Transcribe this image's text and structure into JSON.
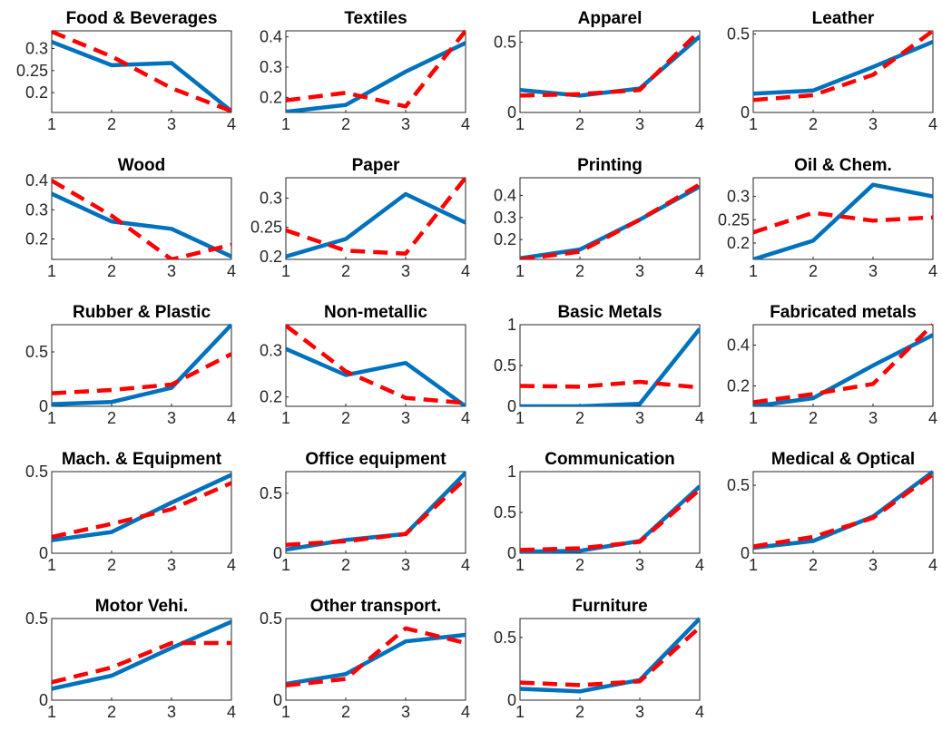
{
  "chart_data": [
    {
      "type": "line",
      "title": "Food & Beverages",
      "x": [
        1,
        2,
        3,
        4
      ],
      "xticks": [
        "1",
        "2",
        "3",
        "4"
      ],
      "ylim": [
        0.155,
        0.34
      ],
      "yticks": [
        0.2,
        0.25,
        0.3
      ],
      "ytick_labels": [
        "0.2",
        "0.25",
        "0.3"
      ],
      "series": [
        {
          "values": [
            0.315,
            0.262,
            0.267,
            0.158
          ],
          "color": "#0072BD",
          "style": "solid"
        },
        {
          "values": [
            0.338,
            0.282,
            0.21,
            0.158
          ],
          "color": "#FF0000",
          "style": "dashed"
        }
      ]
    },
    {
      "type": "line",
      "title": "Textiles",
      "x": [
        1,
        2,
        3,
        4
      ],
      "xticks": [
        "1",
        "2",
        "3",
        "4"
      ],
      "ylim": [
        0.15,
        0.42
      ],
      "yticks": [
        0.2,
        0.3,
        0.4
      ],
      "ytick_labels": [
        "0.2",
        "0.3",
        "0.4"
      ],
      "series": [
        {
          "values": [
            0.152,
            0.175,
            0.285,
            0.38
          ],
          "color": "#0072BD",
          "style": "solid"
        },
        {
          "values": [
            0.19,
            0.215,
            0.17,
            0.42
          ],
          "color": "#FF0000",
          "style": "dashed"
        }
      ]
    },
    {
      "type": "line",
      "title": "Apparel",
      "x": [
        1,
        2,
        3,
        4
      ],
      "xticks": [
        "1",
        "2",
        "3",
        "4"
      ],
      "ylim": [
        0,
        0.58
      ],
      "yticks": [
        0,
        0.5
      ],
      "ytick_labels": [
        "0",
        "0.5"
      ],
      "series": [
        {
          "values": [
            0.16,
            0.12,
            0.17,
            0.54
          ],
          "color": "#0072BD",
          "style": "solid"
        },
        {
          "values": [
            0.12,
            0.13,
            0.16,
            0.58
          ],
          "color": "#FF0000",
          "style": "dashed"
        }
      ]
    },
    {
      "type": "line",
      "title": "Leather",
      "x": [
        1,
        2,
        3,
        4
      ],
      "xticks": [
        "1",
        "2",
        "3",
        "4"
      ],
      "ylim": [
        0,
        0.52
      ],
      "yticks": [
        0,
        0.5
      ],
      "ytick_labels": [
        "0",
        "0.5"
      ],
      "series": [
        {
          "values": [
            0.12,
            0.14,
            0.29,
            0.45
          ],
          "color": "#0072BD",
          "style": "solid"
        },
        {
          "values": [
            0.08,
            0.11,
            0.24,
            0.52
          ],
          "color": "#FF0000",
          "style": "dashed"
        }
      ]
    },
    {
      "type": "line",
      "title": "Wood",
      "x": [
        1,
        2,
        3,
        4
      ],
      "xticks": [
        "1",
        "2",
        "3",
        "4"
      ],
      "ylim": [
        0.13,
        0.41
      ],
      "yticks": [
        0.2,
        0.3,
        0.4
      ],
      "ytick_labels": [
        "0.2",
        "0.3",
        "0.4"
      ],
      "series": [
        {
          "values": [
            0.355,
            0.26,
            0.235,
            0.14
          ],
          "color": "#0072BD",
          "style": "solid"
        },
        {
          "values": [
            0.4,
            0.28,
            0.13,
            0.18
          ],
          "color": "#FF0000",
          "style": "dashed"
        }
      ]
    },
    {
      "type": "line",
      "title": "Paper",
      "x": [
        1,
        2,
        3,
        4
      ],
      "xticks": [
        "1",
        "2",
        "3",
        "4"
      ],
      "ylim": [
        0.195,
        0.335
      ],
      "yticks": [
        0.2,
        0.25,
        0.3
      ],
      "ytick_labels": [
        "0.2",
        "0.25",
        "0.3"
      ],
      "series": [
        {
          "values": [
            0.2,
            0.23,
            0.307,
            0.258
          ],
          "color": "#0072BD",
          "style": "solid"
        },
        {
          "values": [
            0.245,
            0.21,
            0.205,
            0.335
          ],
          "color": "#FF0000",
          "style": "dashed"
        }
      ]
    },
    {
      "type": "line",
      "title": "Printing",
      "x": [
        1,
        2,
        3,
        4
      ],
      "xticks": [
        "1",
        "2",
        "3",
        "4"
      ],
      "ylim": [
        0.11,
        0.48
      ],
      "yticks": [
        0.2,
        0.3,
        0.4
      ],
      "ytick_labels": [
        "0.2",
        "0.3",
        "0.4"
      ],
      "series": [
        {
          "values": [
            0.115,
            0.155,
            0.29,
            0.44
          ],
          "color": "#0072BD",
          "style": "solid"
        },
        {
          "values": [
            0.11,
            0.145,
            0.29,
            0.45
          ],
          "color": "#FF0000",
          "style": "dashed"
        }
      ]
    },
    {
      "type": "line",
      "title": "Oil & Chem.",
      "x": [
        1,
        2,
        3,
        4
      ],
      "xticks": [
        "1",
        "2",
        "3",
        "4"
      ],
      "ylim": [
        0.165,
        0.34
      ],
      "yticks": [
        0.2,
        0.25,
        0.3
      ],
      "ytick_labels": [
        "0.2",
        "0.25",
        "0.3"
      ],
      "series": [
        {
          "values": [
            0.165,
            0.205,
            0.325,
            0.3
          ],
          "color": "#0072BD",
          "style": "solid"
        },
        {
          "values": [
            0.223,
            0.265,
            0.248,
            0.255
          ],
          "color": "#FF0000",
          "style": "dashed"
        }
      ]
    },
    {
      "type": "line",
      "title": "Rubber & Plastic",
      "x": [
        1,
        2,
        3,
        4
      ],
      "xticks": [
        "1",
        "2",
        "3",
        "4"
      ],
      "ylim": [
        0,
        0.75
      ],
      "yticks": [
        0,
        0.5
      ],
      "ytick_labels": [
        "0",
        "0.5"
      ],
      "series": [
        {
          "values": [
            0.02,
            0.04,
            0.17,
            0.75
          ],
          "color": "#0072BD",
          "style": "solid"
        },
        {
          "values": [
            0.12,
            0.15,
            0.2,
            0.48
          ],
          "color": "#FF0000",
          "style": "dashed"
        }
      ]
    },
    {
      "type": "line",
      "title": "Non-metallic",
      "x": [
        1,
        2,
        3,
        4
      ],
      "xticks": [
        "1",
        "2",
        "3",
        "4"
      ],
      "ylim": [
        0.18,
        0.355
      ],
      "yticks": [
        0.2,
        0.3
      ],
      "ytick_labels": [
        "0.2",
        "0.3"
      ],
      "series": [
        {
          "values": [
            0.303,
            0.247,
            0.273,
            0.18
          ],
          "color": "#0072BD",
          "style": "solid"
        },
        {
          "values": [
            0.353,
            0.255,
            0.198,
            0.187
          ],
          "color": "#FF0000",
          "style": "dashed"
        }
      ]
    },
    {
      "type": "line",
      "title": "Basic Metals",
      "x": [
        1,
        2,
        3,
        4
      ],
      "xticks": [
        "1",
        "2",
        "3",
        "4"
      ],
      "ylim": [
        0,
        1
      ],
      "yticks": [
        0,
        0.5,
        1
      ],
      "ytick_labels": [
        "0",
        "0.5",
        "1"
      ],
      "series": [
        {
          "values": [
            0,
            0,
            0.03,
            0.95
          ],
          "color": "#0072BD",
          "style": "solid"
        },
        {
          "values": [
            0.25,
            0.24,
            0.3,
            0.23
          ],
          "color": "#FF0000",
          "style": "dashed"
        }
      ]
    },
    {
      "type": "line",
      "title": "Fabricated metals",
      "x": [
        1,
        2,
        3,
        4
      ],
      "xticks": [
        "1",
        "2",
        "3",
        "4"
      ],
      "ylim": [
        0.1,
        0.5
      ],
      "yticks": [
        0.2,
        0.4
      ],
      "ytick_labels": [
        "0.2",
        "0.4"
      ],
      "series": [
        {
          "values": [
            0.1,
            0.14,
            0.3,
            0.45
          ],
          "color": "#0072BD",
          "style": "solid"
        },
        {
          "values": [
            0.12,
            0.16,
            0.21,
            0.5
          ],
          "color": "#FF0000",
          "style": "dashed"
        }
      ]
    },
    {
      "type": "line",
      "title": "Mach. & Equipment",
      "x": [
        1,
        2,
        3,
        4
      ],
      "xticks": [
        "1",
        "2",
        "3",
        "4"
      ],
      "ylim": [
        0,
        0.5
      ],
      "yticks": [
        0,
        0.5
      ],
      "ytick_labels": [
        "0",
        "0.5"
      ],
      "series": [
        {
          "values": [
            0.08,
            0.13,
            0.31,
            0.48
          ],
          "color": "#0072BD",
          "style": "solid"
        },
        {
          "values": [
            0.1,
            0.18,
            0.27,
            0.43
          ],
          "color": "#FF0000",
          "style": "dashed"
        }
      ]
    },
    {
      "type": "line",
      "title": "Office equipment",
      "x": [
        1,
        2,
        3,
        4
      ],
      "xticks": [
        "1",
        "2",
        "3",
        "4"
      ],
      "ylim": [
        0,
        0.68
      ],
      "yticks": [
        0,
        0.5
      ],
      "ytick_labels": [
        "0",
        "0.5"
      ],
      "series": [
        {
          "values": [
            0.03,
            0.11,
            0.16,
            0.67
          ],
          "color": "#0072BD",
          "style": "solid"
        },
        {
          "values": [
            0.07,
            0.1,
            0.16,
            0.62
          ],
          "color": "#FF0000",
          "style": "dashed"
        }
      ]
    },
    {
      "type": "line",
      "title": "Communication",
      "x": [
        1,
        2,
        3,
        4
      ],
      "xticks": [
        "1",
        "2",
        "3",
        "4"
      ],
      "ylim": [
        0,
        1
      ],
      "yticks": [
        0,
        0.5,
        1
      ],
      "ytick_labels": [
        "0",
        "0.5",
        "1"
      ],
      "series": [
        {
          "values": [
            0.02,
            0.03,
            0.15,
            0.82
          ],
          "color": "#0072BD",
          "style": "solid"
        },
        {
          "values": [
            0.04,
            0.06,
            0.14,
            0.78
          ],
          "color": "#FF0000",
          "style": "dashed"
        }
      ]
    },
    {
      "type": "line",
      "title": "Medical & Optical",
      "x": [
        1,
        2,
        3,
        4
      ],
      "xticks": [
        "1",
        "2",
        "3",
        "4"
      ],
      "ylim": [
        0,
        0.6
      ],
      "yticks": [
        0,
        0.5
      ],
      "ytick_labels": [
        "0",
        "0.5"
      ],
      "series": [
        {
          "values": [
            0.04,
            0.09,
            0.27,
            0.6
          ],
          "color": "#0072BD",
          "style": "solid"
        },
        {
          "values": [
            0.05,
            0.12,
            0.26,
            0.58
          ],
          "color": "#FF0000",
          "style": "dashed"
        }
      ]
    },
    {
      "type": "line",
      "title": "Motor Vehi.",
      "x": [
        1,
        2,
        3,
        4
      ],
      "xticks": [
        "1",
        "2",
        "3",
        "4"
      ],
      "ylim": [
        0,
        0.5
      ],
      "yticks": [
        0,
        0.5
      ],
      "ytick_labels": [
        "0",
        "0.5"
      ],
      "series": [
        {
          "values": [
            0.07,
            0.15,
            0.32,
            0.48
          ],
          "color": "#0072BD",
          "style": "solid"
        },
        {
          "values": [
            0.11,
            0.2,
            0.35,
            0.35
          ],
          "color": "#FF0000",
          "style": "dashed"
        }
      ]
    },
    {
      "type": "line",
      "title": "Other transport.",
      "x": [
        1,
        2,
        3,
        4
      ],
      "xticks": [
        "1",
        "2",
        "3",
        "4"
      ],
      "ylim": [
        0,
        0.5
      ],
      "yticks": [
        0,
        0.5
      ],
      "ytick_labels": [
        "0",
        "0.5"
      ],
      "series": [
        {
          "values": [
            0.1,
            0.16,
            0.36,
            0.4
          ],
          "color": "#0072BD",
          "style": "solid"
        },
        {
          "values": [
            0.09,
            0.13,
            0.44,
            0.35
          ],
          "color": "#FF0000",
          "style": "dashed"
        }
      ]
    },
    {
      "type": "line",
      "title": "Furniture",
      "x": [
        1,
        2,
        3,
        4
      ],
      "xticks": [
        "1",
        "2",
        "3",
        "4"
      ],
      "ylim": [
        0,
        0.65
      ],
      "yticks": [
        0,
        0.5
      ],
      "ytick_labels": [
        "0",
        "0.5"
      ],
      "series": [
        {
          "values": [
            0.09,
            0.07,
            0.16,
            0.65
          ],
          "color": "#0072BD",
          "style": "solid"
        },
        {
          "values": [
            0.14,
            0.12,
            0.15,
            0.58
          ],
          "color": "#FF0000",
          "style": "dashed"
        }
      ]
    }
  ]
}
